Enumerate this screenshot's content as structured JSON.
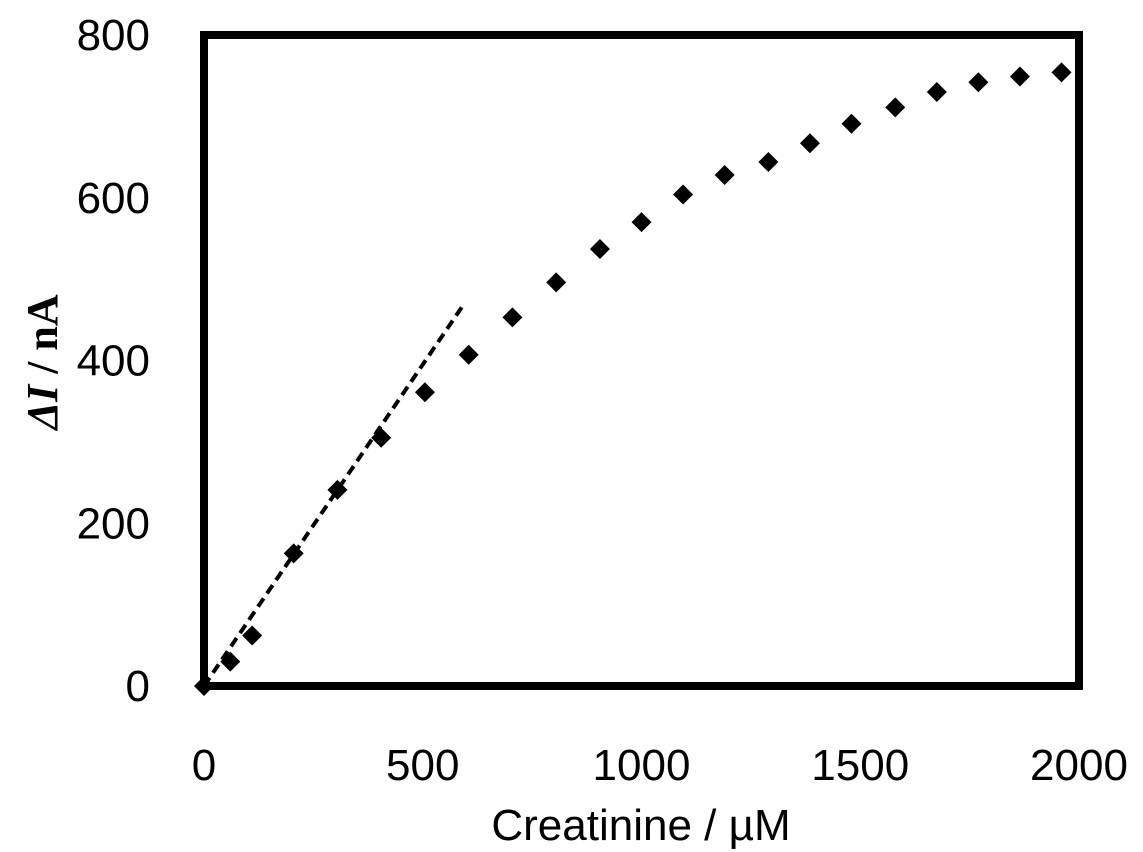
{
  "chart_data": {
    "type": "scatter",
    "xlabel": "Creatinine / µM",
    "ylabel_symbol": "ΔI",
    "ylabel_unit": " / nA",
    "xlim": [
      0,
      2000
    ],
    "ylim": [
      0,
      800
    ],
    "x_ticks": [
      0,
      500,
      1000,
      1500,
      2000
    ],
    "y_ticks": [
      0,
      200,
      400,
      600,
      800
    ],
    "grid": false,
    "legend": "none",
    "marker": "diamond",
    "marker_color": "#000000",
    "series": [
      {
        "x": [
          0,
          60,
          110,
          205,
          305,
          405,
          505,
          605,
          705,
          805,
          905,
          1000,
          1095,
          1190,
          1290,
          1385,
          1480,
          1580,
          1675,
          1770,
          1865,
          1960
        ],
        "y": [
          0,
          30,
          62,
          163,
          241,
          305,
          361,
          407,
          453,
          496,
          537,
          570,
          604,
          628,
          644,
          667,
          691,
          711,
          730,
          742,
          749,
          754
        ]
      }
    ],
    "fit_line": {
      "style": "dashed",
      "x": [
        0,
        595
      ],
      "y": [
        0,
        470
      ]
    }
  }
}
